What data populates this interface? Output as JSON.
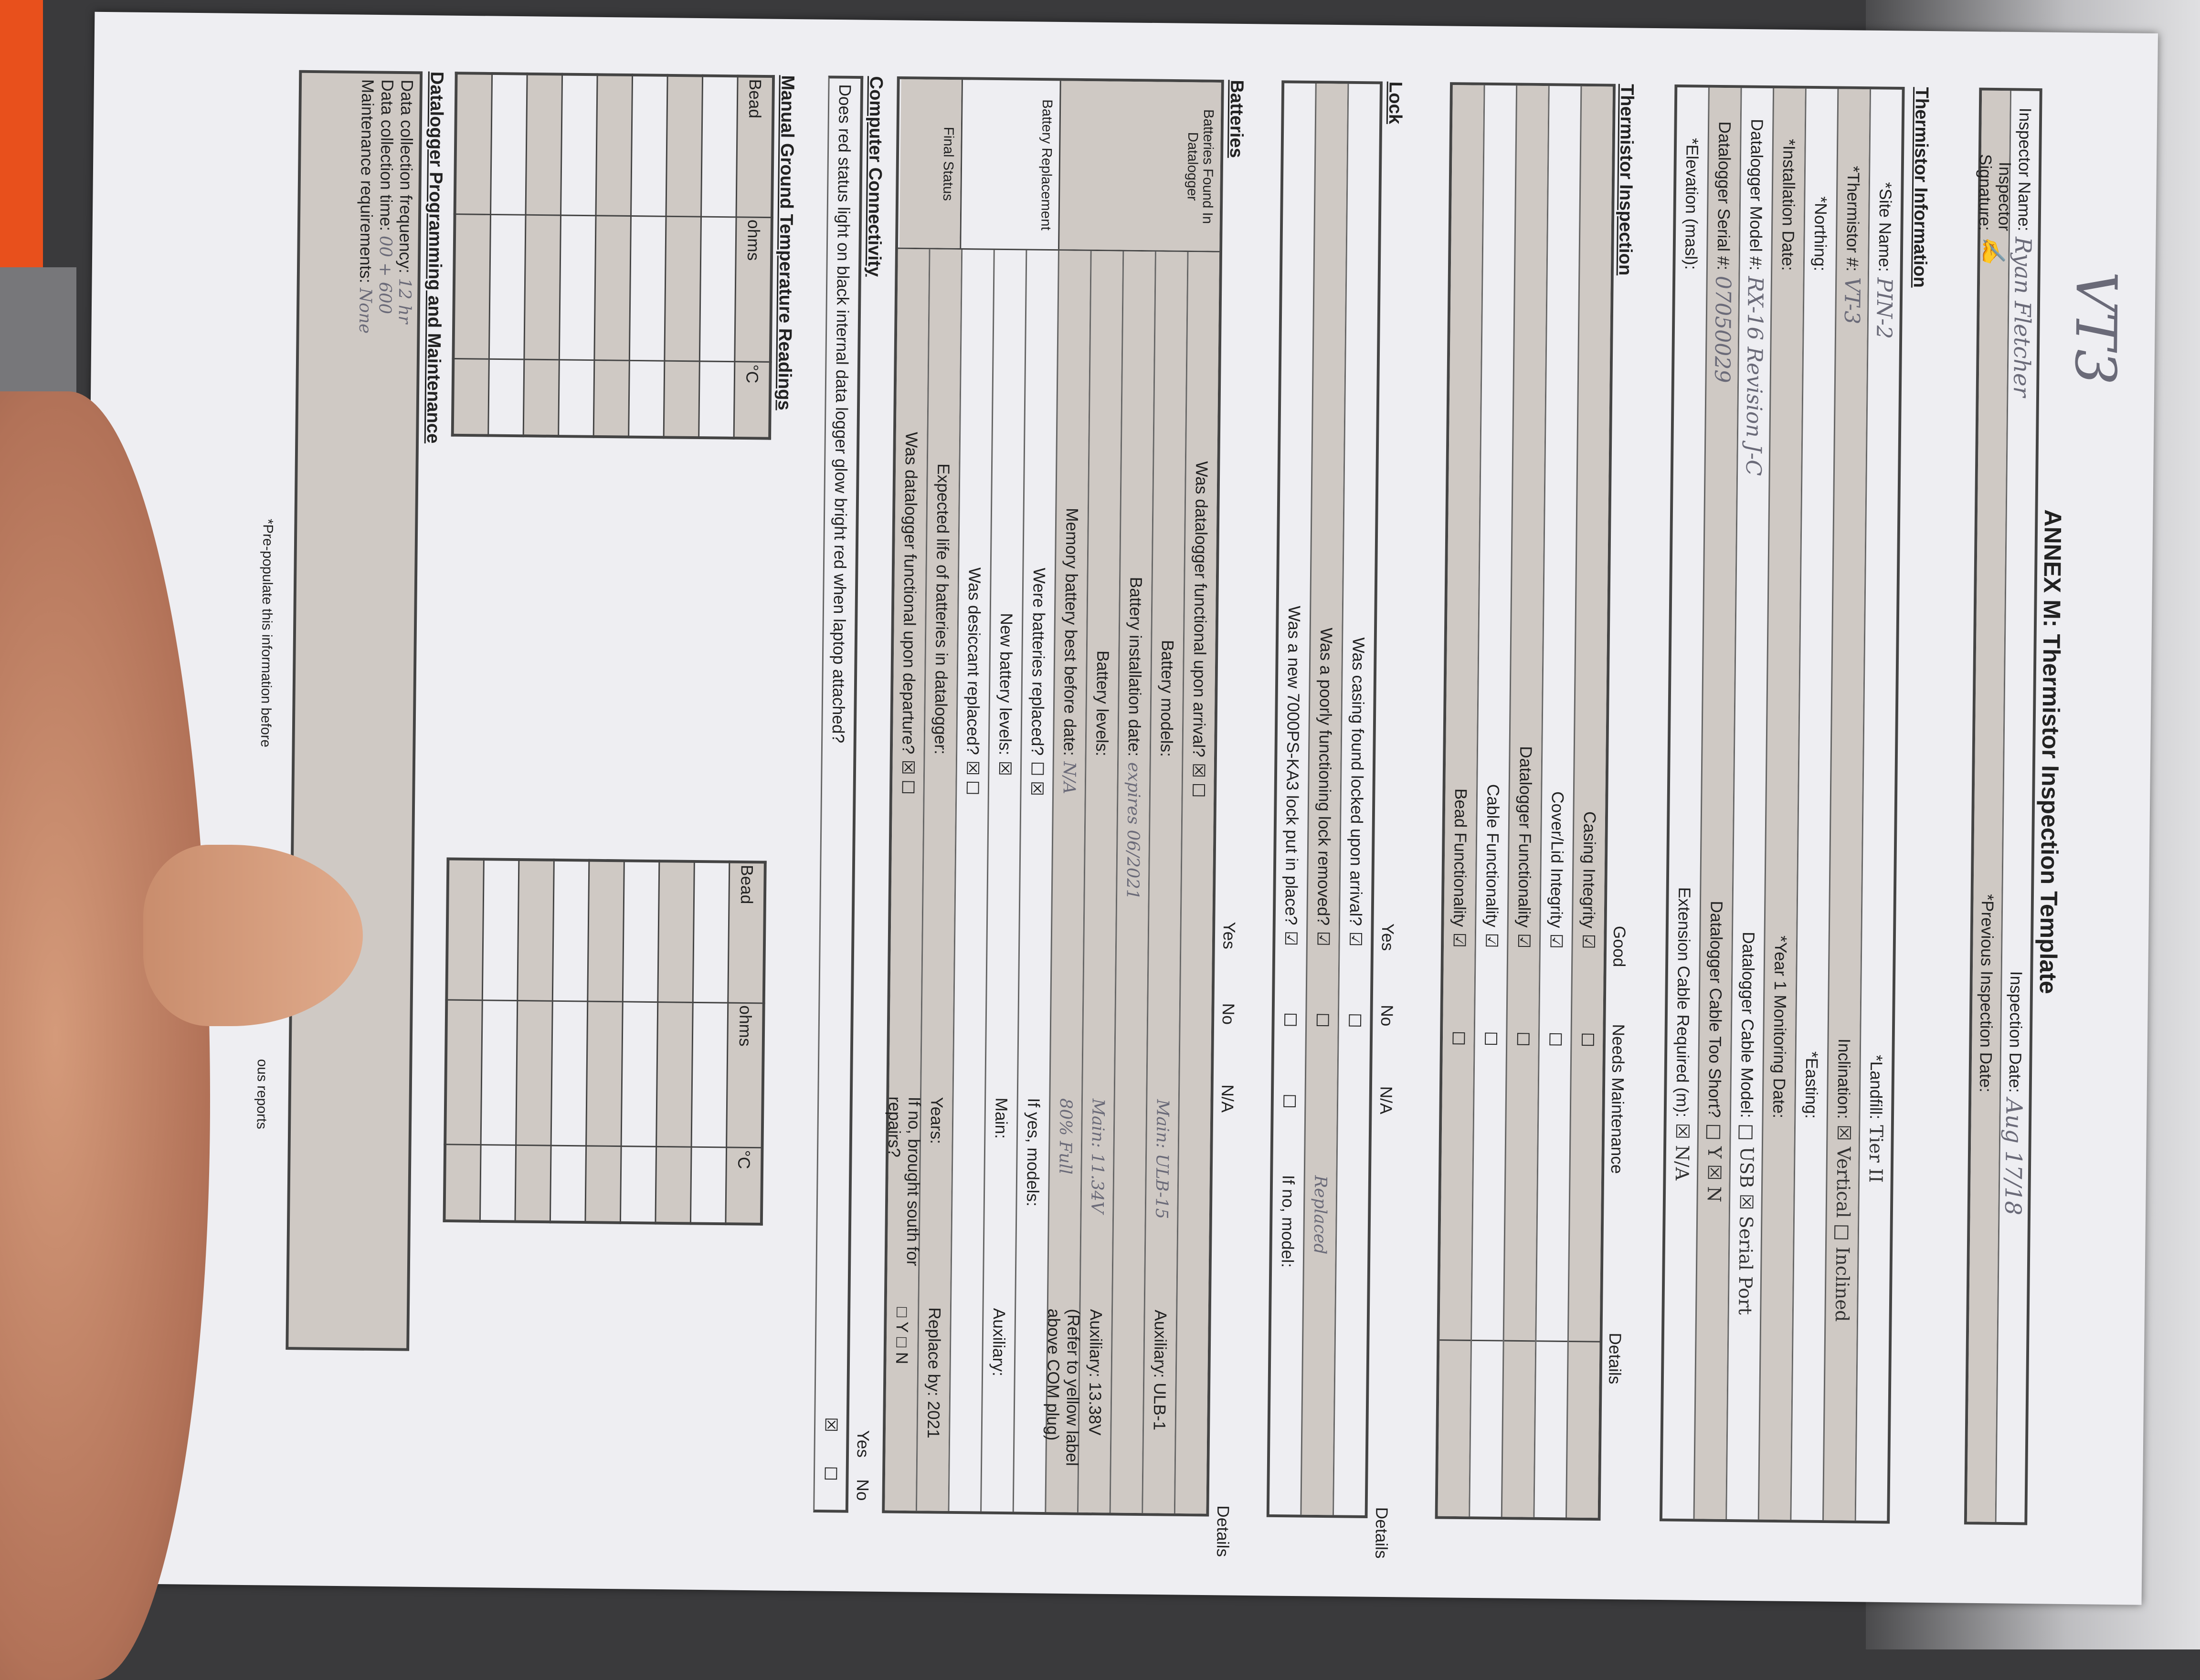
{
  "form": {
    "top_note": "VT3",
    "title": "ANNEX M: Thermistor Inspection Template",
    "inspector": {
      "name_label": "Inspector Name:",
      "name_value": "Ryan Fletcher",
      "signature_label": "Inspector Signature:",
      "date_label": "Inspection Date:",
      "date_value": "Aug 17/18",
      "prev_date_label": "*Previous Inspection Date:"
    },
    "info": {
      "heading": "Thermistor Information",
      "rows": [
        {
          "l": "*Site Name:",
          "v": "PIN-2",
          "r": "*Landfill:",
          "rv": "Tier II"
        },
        {
          "l": "*Thermistor #:",
          "v": "VT-3",
          "r": "Inclination:",
          "rv": "☒ Vertical   □ Inclined"
        },
        {
          "l": "*Northing:",
          "v": "",
          "r": "*Easting:",
          "rv": ""
        },
        {
          "l": "*Installation Date:",
          "v": "",
          "r": "*Year 1 Monitoring Date:",
          "rv": ""
        },
        {
          "l": "Datalogger Model #:",
          "v": "RX-16 Revision J-C",
          "r": "Datalogger Cable Model:",
          "rv": "□ USB   ☒ Serial Port"
        },
        {
          "l": "Datalogger Serial #:",
          "v": "07050029",
          "r": "Datalogger Cable Too Short?",
          "rv": "□ Y   ☒ N"
        },
        {
          "l": "*Elevation (masl):",
          "v": "",
          "r": "Extension Cable Required (m):",
          "rv": "☒ N/A"
        }
      ]
    },
    "inspection": {
      "heading": "Thermistor Inspection",
      "cols": [
        "Good",
        "Needs Maintenance",
        "Details"
      ],
      "rows": [
        "Casing Integrity",
        "Cover/Lid Integrity",
        "Datalogger Functionality",
        "Cable Functionality",
        "Bead Functionality"
      ]
    },
    "lock": {
      "heading": "Lock",
      "cols": [
        "Yes",
        "No",
        "N/A",
        "Details"
      ],
      "rows": [
        {
          "q": "Was casing found locked upon arrival?",
          "d": ""
        },
        {
          "q": "Was a poorly functioning lock removed?",
          "d": "Replaced"
        },
        {
          "q": "Was a new 7000PS-KA3 lock put in place?",
          "d": "If no, model:"
        }
      ]
    },
    "batteries": {
      "heading": "Batteries",
      "cols": [
        "Yes",
        "No",
        "N/A",
        "Details"
      ],
      "group1": "Batteries Found In Datalogger",
      "group2": "Battery Replacement",
      "group3": "Final Status",
      "rows": [
        {
          "q": "Was datalogger functional upon arrival?",
          "yes": true,
          "d": ""
        },
        {
          "q": "Battery models:",
          "d": "Main: ULB-15",
          "aux": "Auxiliary: ULB-1"
        },
        {
          "q": "Battery installation date:",
          "hw": "expires 06/2021",
          "d": ""
        },
        {
          "q": "Battery levels:",
          "d": "Main: 11.34V",
          "aux": "Auxiliary: 13.38V"
        },
        {
          "q": "Memory battery best before date:",
          "hw": "N/A",
          "d": "80% Full",
          "aux": "(Refer to yellow label above COM plug)"
        },
        {
          "q": "Were batteries replaced?",
          "no": true,
          "d": "If yes, models:"
        },
        {
          "q": "New battery levels:",
          "na": true,
          "d": "Main:",
          "aux": "Auxiliary:"
        },
        {
          "q": "Was desiccant replaced?",
          "yes": true,
          "d": ""
        },
        {
          "q": "Expected life of batteries in datalogger:",
          "d": "Years:",
          "aux": "Replace by:  2021"
        },
        {
          "q": "Was datalogger functional upon departure?",
          "yes": true,
          "d": "If no, brought south for repairs?",
          "aux": "□ Y   □ N"
        }
      ]
    },
    "connectivity": {
      "heading": "Computer Connectivity",
      "question": "Does red status light on black internal data logger glow bright red when laptop attached?",
      "yes_label": "Yes",
      "no_label": "No",
      "answer": "Yes"
    },
    "ground_temp": {
      "heading": "Manual Ground Temperature Readings",
      "cols": [
        "Bead",
        "ohms",
        "°C"
      ]
    },
    "programming": {
      "heading": "Datalogger Programming and Maintenance",
      "freq_label": "Data collection frequency:",
      "freq_value": "12 hr",
      "time_label": "Data collection time:",
      "time_value": "00 + 600",
      "maint_label": "Maintenance requirements:",
      "maint_value": "None"
    },
    "footnote": "*Pre-populate this information before",
    "footnote_tail": "ous reports"
  }
}
